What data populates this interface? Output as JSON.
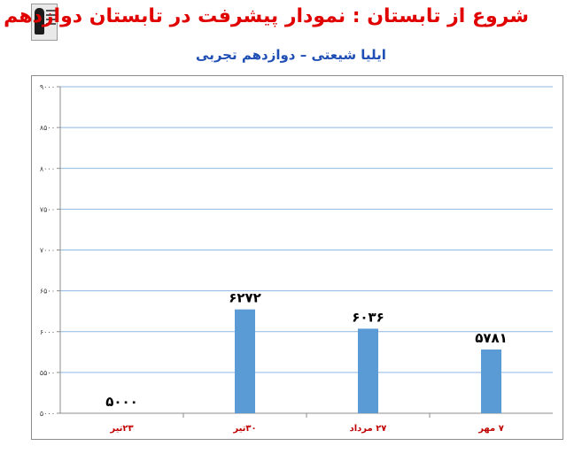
{
  "title": "شروع از تابستان : نمودار پیشرفت در تابستان دوازدهم",
  "subtitle": "ایلیا شیعتی – دوازدهم تجربی",
  "logo": {
    "icon": "graduate-logo-icon"
  },
  "colors": {
    "title": "#e00000",
    "subtitle": "#1f4fb4",
    "bar": "#5b9bd5",
    "grid": "#8fb8e2",
    "xlabel": "#c00000"
  },
  "chart_data": {
    "type": "bar",
    "categories": [
      "۲۳تیر",
      "۳۰تیر",
      "۲۷ مرداد",
      "۷ مهر"
    ],
    "values": [
      5000,
      6272,
      6036,
      5781
    ],
    "value_labels": [
      "۵۰۰۰",
      "۶۲۷۲",
      "۶۰۳۶",
      "۵۷۸۱"
    ],
    "yticks": [
      5000,
      5500,
      6000,
      6500,
      7000,
      7500,
      8000,
      8500,
      9000
    ],
    "ytick_labels": [
      "۵۰۰۰",
      "۵۵۰۰",
      "۶۰۰۰",
      "۶۵۰۰",
      "۷۰۰۰",
      "۷۵۰۰",
      "۸۰۰۰",
      "۸۵۰۰",
      "۹۰۰۰"
    ],
    "ylim": [
      5000,
      9000
    ],
    "grid": true,
    "legend": "none",
    "xlabel": "",
    "ylabel": ""
  }
}
